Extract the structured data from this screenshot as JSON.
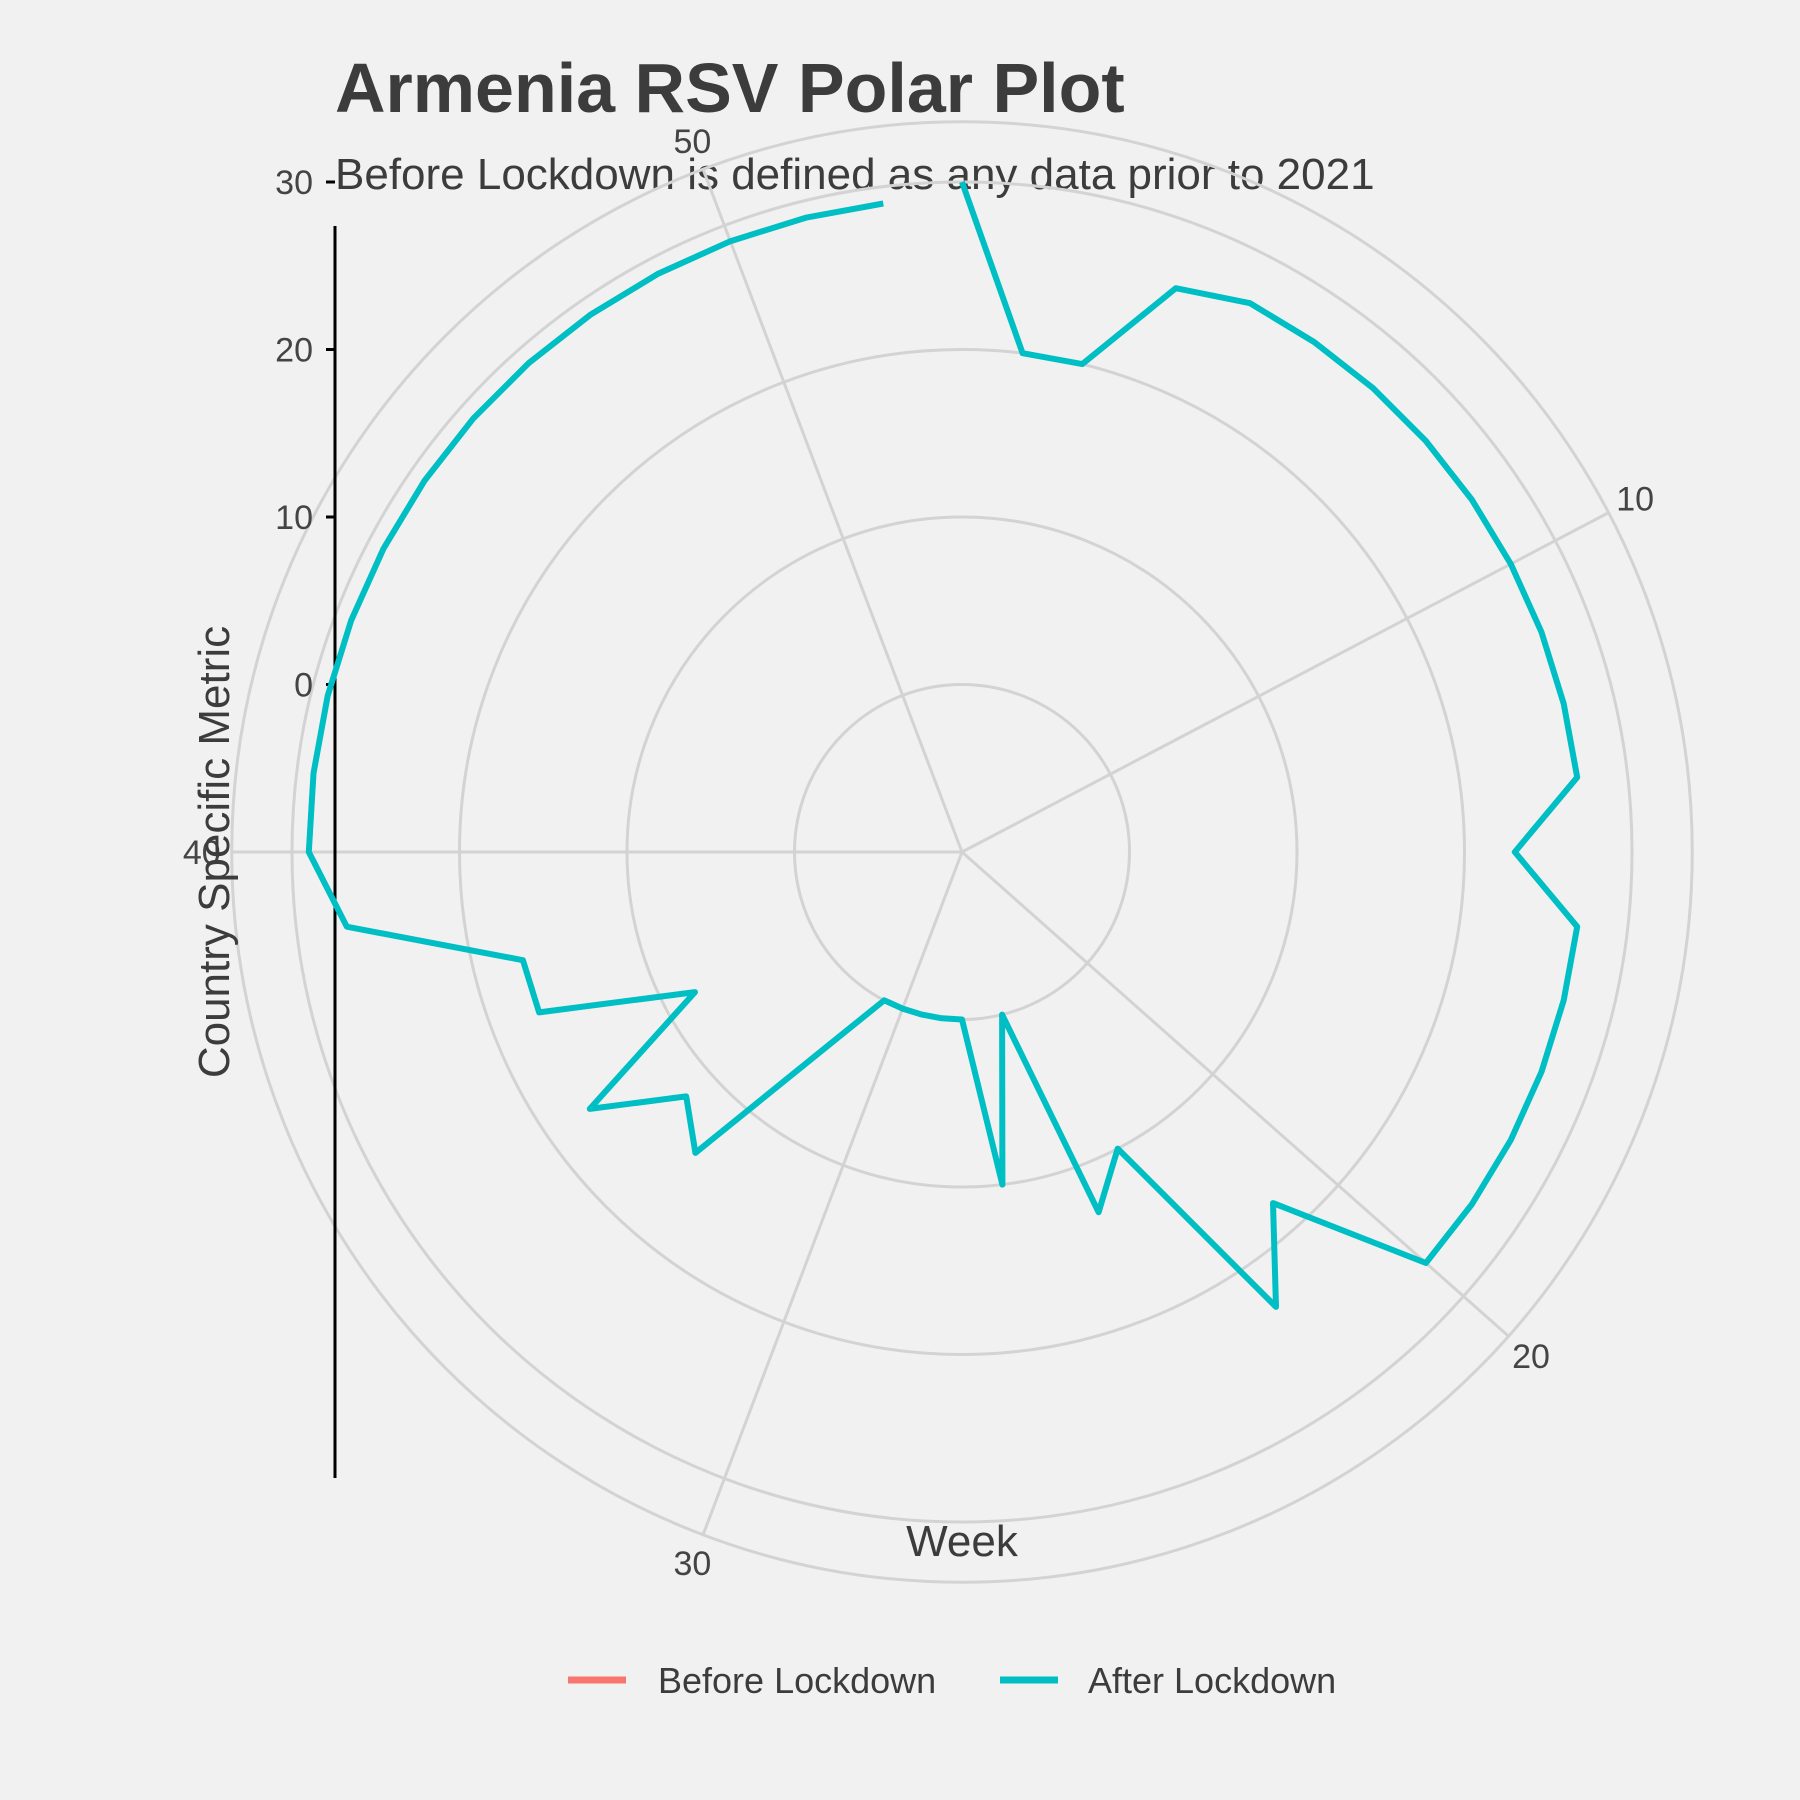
{
  "title": "Armenia RSV Polar Plot",
  "subtitle": "Before Lockdown is defined as any data prior to 2021",
  "chart_data": {
    "type": "line",
    "coord": "polar",
    "title": "Armenia RSV Polar Plot",
    "subtitle": "Before Lockdown is defined as any data prior to 2021",
    "xlabel": "Week",
    "ylabel": "Country Specific Metric",
    "x_ticks": [
      10,
      20,
      30,
      40,
      50
    ],
    "x_range": [
      1,
      53
    ],
    "y_ticks": [
      0,
      10,
      20,
      30
    ],
    "ylim": [
      -10,
      33
    ],
    "grid": true,
    "legend_position": "bottom",
    "legend": [
      {
        "name": "Before Lockdown",
        "color": "#f8766d"
      },
      {
        "name": "After Lockdown",
        "color": "#00bfc4"
      }
    ],
    "series": [
      {
        "name": "Before Lockdown",
        "color": "#f8766d",
        "x": [],
        "y": []
      },
      {
        "name": "After Lockdown",
        "color": "#00bfc4",
        "x": [
          1,
          2,
          3,
          4,
          5,
          6,
          7,
          8,
          9,
          10,
          11,
          12,
          13,
          14,
          15,
          16,
          17,
          18,
          19,
          20,
          21,
          22,
          23,
          24,
          25,
          26,
          27,
          28,
          29,
          30,
          31,
          32,
          33,
          34,
          35,
          36,
          37,
          38,
          39,
          40,
          41,
          42,
          43,
          44,
          45,
          46,
          47,
          48,
          49,
          50,
          51,
          52
        ],
        "y": [
          30,
          20,
          20,
          26,
          27,
          27,
          27,
          27,
          27,
          27,
          27,
          27,
          27,
          23,
          27,
          27,
          27,
          27,
          27,
          27,
          18,
          23,
          10,
          13,
          0,
          10,
          0,
          0,
          0,
          0,
          0,
          4,
          14,
          12,
          17,
          8,
          17,
          17,
          27,
          29,
          29,
          29,
          29,
          29,
          29,
          29,
          29,
          29,
          29,
          29,
          29,
          29
        ]
      }
    ]
  }
}
